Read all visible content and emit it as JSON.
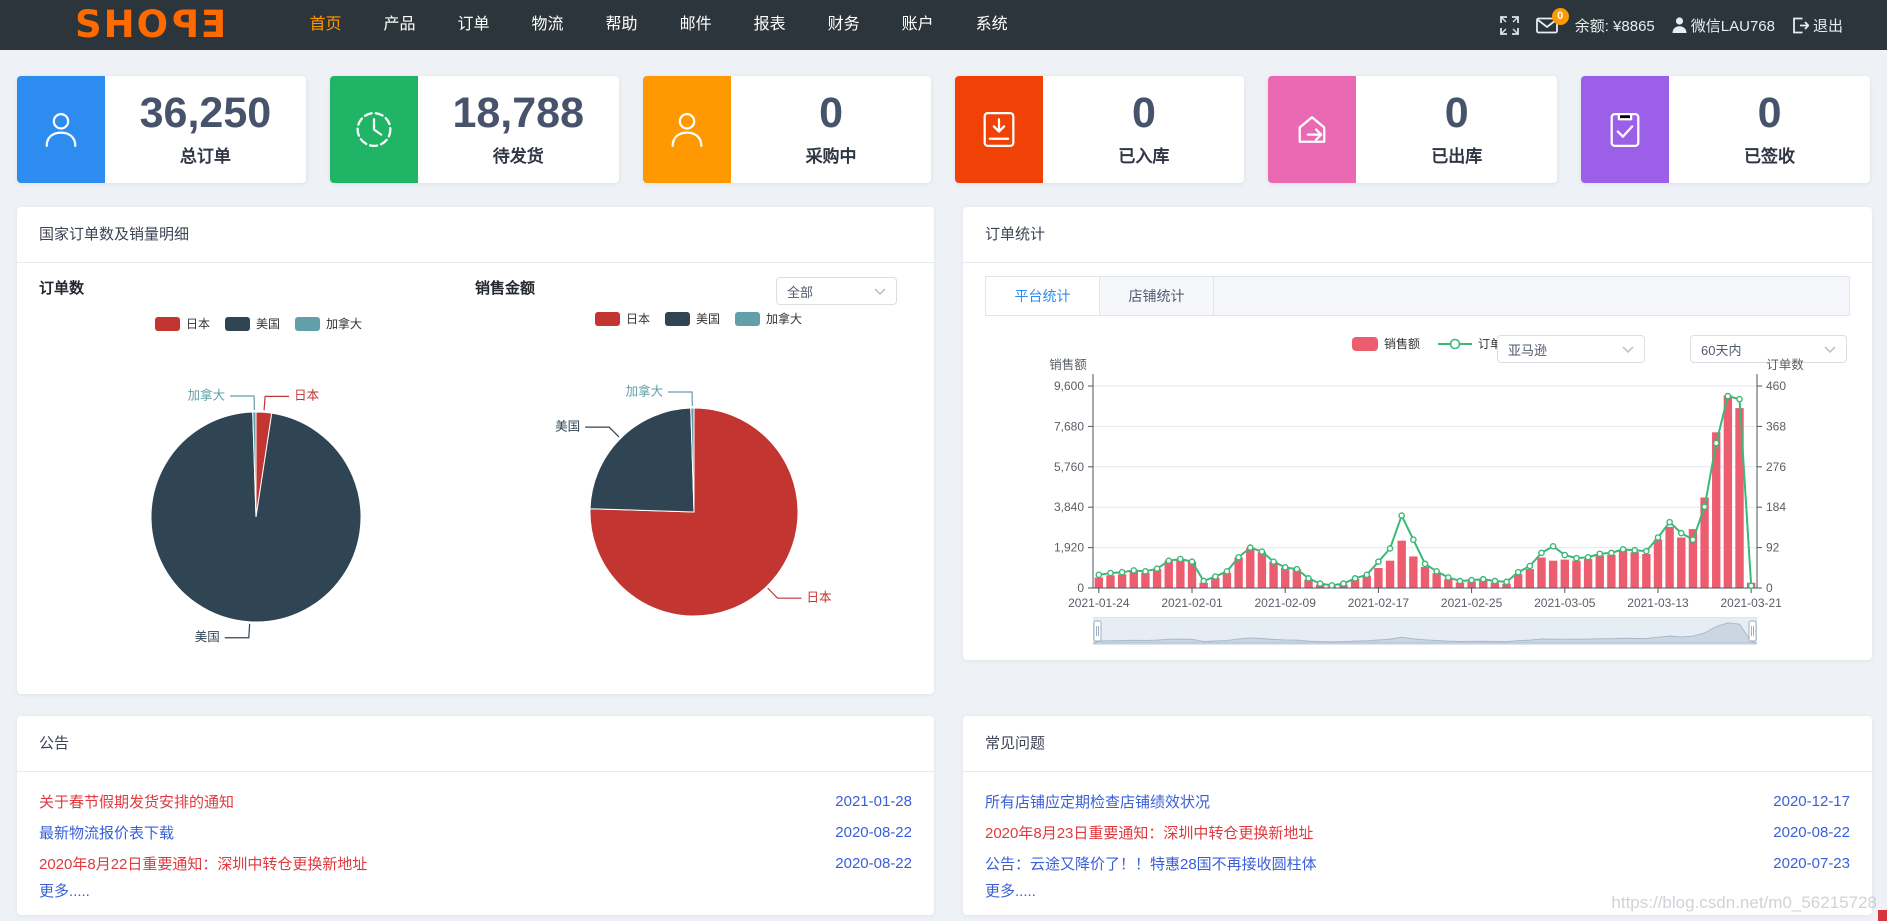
{
  "navbar": {
    "logo": {
      "part_a": "SHO",
      "part_b": "P",
      "part_c": "E"
    },
    "items": [
      {
        "label": "首页",
        "active": true
      },
      {
        "label": "产品",
        "active": false
      },
      {
        "label": "订单",
        "active": false
      },
      {
        "label": "物流",
        "active": false
      },
      {
        "label": "帮助",
        "active": false
      },
      {
        "label": "邮件",
        "active": false
      },
      {
        "label": "报表",
        "active": false
      },
      {
        "label": "财务",
        "active": false
      },
      {
        "label": "账户",
        "active": false
      },
      {
        "label": "系统",
        "active": false
      }
    ],
    "message_badge": "0",
    "balance": "余额: ¥8865",
    "wechat": "微信LAU768",
    "logout": "退出"
  },
  "stat_cards": [
    {
      "value": "36,250",
      "label": "总订单",
      "color": "#2d8cf0",
      "icon": "user-icon"
    },
    {
      "value": "18,788",
      "label": "待发货",
      "color": "#20b566",
      "icon": "clock-icon"
    },
    {
      "value": "0",
      "label": "采购中",
      "color": "#ff9902",
      "icon": "user-icon"
    },
    {
      "value": "0",
      "label": "已入库",
      "color": "#f04106",
      "icon": "inbox-in-icon"
    },
    {
      "value": "0",
      "label": "已出库",
      "color": "#e96ab2",
      "icon": "home-out-icon"
    },
    {
      "value": "0",
      "label": "已签收",
      "color": "#9c5fe8",
      "icon": "clipboard-check-icon"
    }
  ],
  "country_panel": {
    "title": "国家订单数及销量明细",
    "chart1_title": "订单数",
    "chart2_title": "销售金额",
    "filter_value": "全部"
  },
  "order_panel": {
    "title": "订单统计",
    "tabs": [
      "平台统计",
      "店铺统计"
    ],
    "platform_select": "亚马逊",
    "range_select": "60天内"
  },
  "chart_data": [
    {
      "id": "orders_pie",
      "type": "pie",
      "title": "订单数",
      "series": [
        {
          "name": "日本",
          "value": 2.4,
          "color": "#c23531"
        },
        {
          "name": "美国",
          "value": 97.1,
          "color": "#2f4554"
        },
        {
          "name": "加拿大",
          "value": 0.5,
          "color": "#61a0a8"
        }
      ]
    },
    {
      "id": "sales_pie",
      "type": "pie",
      "title": "销售金额",
      "series": [
        {
          "name": "日本",
          "value": 75.5,
          "color": "#c23531"
        },
        {
          "name": "美国",
          "value": 24.0,
          "color": "#2f4554"
        },
        {
          "name": "加拿大",
          "value": 0.5,
          "color": "#61a0a8"
        }
      ]
    },
    {
      "id": "order_stats",
      "type": "bar+line",
      "title": "订单统计",
      "x_tick_labels": [
        "2021-01-24",
        "2021-02-01",
        "2021-02-09",
        "2021-02-17",
        "2021-02-25",
        "2021-03-05",
        "2021-03-13",
        "2021-03-21"
      ],
      "x_tick_indices": [
        0,
        8,
        16,
        24,
        32,
        40,
        48,
        56
      ],
      "y_left": {
        "title": "销售额",
        "min": 0,
        "max": 9600,
        "ticks": [
          0,
          1920,
          3840,
          5760,
          7680,
          9600
        ]
      },
      "y_right": {
        "title": "订单数",
        "min": 0,
        "max": 460,
        "ticks": [
          0,
          92,
          184,
          276,
          368,
          460
        ]
      },
      "series": [
        {
          "name": "销售额",
          "type": "bar",
          "axis": "left",
          "color": "#ec5e6f",
          "values": [
            500,
            600,
            650,
            810,
            730,
            900,
            1300,
            1380,
            1250,
            240,
            490,
            730,
            1450,
            1900,
            1700,
            1250,
            975,
            890,
            400,
            160,
            80,
            160,
            420,
            580,
            950,
            1300,
            2250,
            1500,
            1000,
            700,
            420,
            260,
            310,
            360,
            260,
            210,
            660,
            900,
            1450,
            1300,
            1350,
            1300,
            1380,
            1560,
            1580,
            1780,
            1700,
            1620,
            2300,
            2900,
            2400,
            2800,
            4300,
            7400,
            9150,
            8550,
            250
          ]
        },
        {
          "name": "订单数",
          "type": "line",
          "axis": "right",
          "color": "#3cb878",
          "values": [
            30,
            34,
            36,
            40,
            38,
            44,
            62,
            66,
            60,
            16,
            26,
            38,
            70,
            92,
            83,
            60,
            47,
            43,
            22,
            10,
            6,
            10,
            22,
            30,
            60,
            90,
            165,
            110,
            55,
            38,
            24,
            16,
            18,
            20,
            16,
            14,
            36,
            50,
            80,
            95,
            75,
            68,
            70,
            78,
            80,
            88,
            86,
            84,
            115,
            150,
            125,
            110,
            185,
            330,
            437,
            430,
            5
          ]
        }
      ],
      "datazoom": true
    }
  ],
  "notice_panel": {
    "title": "公告",
    "items": [
      {
        "text": "关于春节假期发货安排的通知",
        "date": "2021-01-28",
        "color": "red"
      },
      {
        "text": "最新物流报价表下载",
        "date": "2020-08-22",
        "color": "blue"
      },
      {
        "text": "2020年8月22日重要通知：深圳中转仓更换新地址",
        "date": "2020-08-22",
        "color": "red"
      }
    ],
    "more": "更多....."
  },
  "faq_panel": {
    "title": "常见问题",
    "items": [
      {
        "text": "所有店铺应定期检查店铺绩效状况",
        "date": "2020-12-17",
        "color": "blue"
      },
      {
        "text": "2020年8月23日重要通知：深圳中转仓更换新地址",
        "date": "2020-08-22",
        "color": "red"
      },
      {
        "text": "公告：云途又降价了！！特惠28国不再接收圆柱体",
        "date": "2020-07-23",
        "color": "blue"
      }
    ],
    "more": "更多....."
  },
  "watermark": "https://blog.csdn.net/m0_56215728"
}
